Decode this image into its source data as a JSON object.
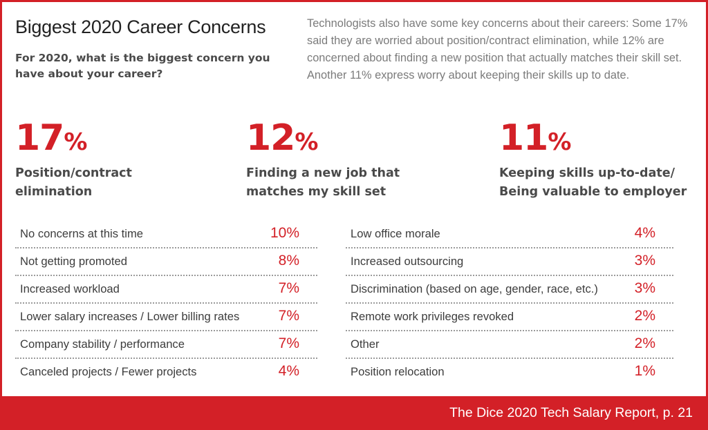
{
  "header": {
    "title": "Biggest 2020 Career Concerns",
    "question": "For 2020, what is the biggest concern you have about your career?",
    "intro": "Technologists also have some key concerns about their careers: Some 17% said they are worried about position/contract elimination, while 12% are concerned about finding a new position that actually matches their skill set. Another 11% express worry about keeping their skills up to date."
  },
  "colors": {
    "accent": "#d32027",
    "text_dark": "#3c3c3c",
    "text_muted": "#7b7b7b"
  },
  "chart_data": {
    "type": "table",
    "title": "Biggest 2020 Career Concerns",
    "value_unit": "%",
    "top_concerns": [
      {
        "value": 17,
        "display": "17",
        "label": "Position/contract\nelimination"
      },
      {
        "value": 12,
        "display": "12",
        "label": "Finding a new job that\nmatches my skill set"
      },
      {
        "value": 11,
        "display": "11",
        "label": "Keeping skills up-to-date/\nBeing valuable to employer"
      }
    ],
    "left_list": [
      {
        "label": "No concerns at this time",
        "value": 10,
        "display": "10%"
      },
      {
        "label": "Not getting promoted",
        "value": 8,
        "display": "8%"
      },
      {
        "label": "Increased workload",
        "value": 7,
        "display": "7%"
      },
      {
        "label": "Lower salary increases / Lower billing rates",
        "value": 7,
        "display": "7%"
      },
      {
        "label": "Company stability / performance",
        "value": 7,
        "display": "7%"
      },
      {
        "label": "Canceled projects / Fewer projects",
        "value": 4,
        "display": "4%"
      }
    ],
    "right_list": [
      {
        "label": "Low office morale",
        "value": 4,
        "display": "4%"
      },
      {
        "label": "Increased outsourcing",
        "value": 3,
        "display": "3%"
      },
      {
        "label": "Discrimination (based on age, gender, race, etc.)",
        "value": 3,
        "display": "3%"
      },
      {
        "label": "Remote work privileges revoked",
        "value": 2,
        "display": "2%"
      },
      {
        "label": "Other",
        "value": 2,
        "display": "2%"
      },
      {
        "label": "Position relocation",
        "value": 1,
        "display": "1%"
      }
    ]
  },
  "footer": {
    "source": "The Dice 2020 Tech Salary Report, p. 21"
  }
}
